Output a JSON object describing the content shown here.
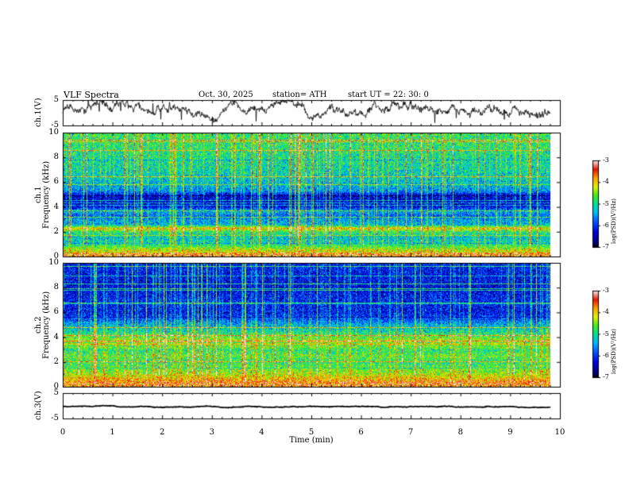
{
  "chart_data": {
    "type": "heatmap",
    "header": {
      "title": "VLF  Spectra",
      "date": "Oct. 30, 2025",
      "station": "station= ATH",
      "start": "start  UT  =   22: 30: 0"
    },
    "x": {
      "label": "Time  (min)",
      "range": [
        0,
        10
      ],
      "ticks": [
        "0",
        "1",
        "2",
        "3",
        "4",
        "5",
        "6",
        "7",
        "8",
        "9",
        "10"
      ]
    },
    "panels": [
      {
        "id": "ch1-waveform",
        "type": "line",
        "ylabel": "ch.1(V)",
        "ylim": [
          -5,
          5
        ],
        "yticks": [
          "5",
          "-5"
        ],
        "offset": 0.6,
        "amplitude": 2.6
      },
      {
        "id": "ch1-spectrogram",
        "type": "heatmap",
        "ylabel": "ch.1\nFrequency  (kHz)",
        "ylim": [
          0,
          10
        ],
        "yticks": [
          "10",
          "8",
          "6",
          "4",
          "2",
          "0"
        ],
        "colorbar": {
          "label": "log(PSD)(V²/Hz)",
          "ticks": [
            "-3",
            "-4",
            "-5",
            "-6",
            "-7"
          ],
          "range": [
            -7,
            -3
          ]
        },
        "profile_khz": [
          [
            0,
            -4.6
          ],
          [
            0.5,
            -4.2
          ],
          [
            1,
            -5.0
          ],
          [
            1.5,
            -5.3
          ],
          [
            2,
            -4.9
          ],
          [
            2.3,
            -4.0
          ],
          [
            2.6,
            -5.4
          ],
          [
            3,
            -5.5
          ],
          [
            3.3,
            -5.8
          ],
          [
            3.7,
            -5.4
          ],
          [
            4,
            -6.2
          ],
          [
            4.5,
            -6.4
          ],
          [
            5,
            -6.3
          ],
          [
            5.3,
            -5.6
          ],
          [
            6,
            -5.3
          ],
          [
            7,
            -5.1
          ],
          [
            8,
            -5.0
          ],
          [
            9,
            -4.9
          ],
          [
            10,
            -4.8
          ]
        ]
      },
      {
        "id": "ch2-spectrogram",
        "type": "heatmap",
        "ylabel": "ch.2\nFrequency  (kHz)",
        "ylim": [
          0,
          10
        ],
        "yticks": [
          "10",
          "8",
          "6",
          "4",
          "2",
          "0"
        ],
        "colorbar": {
          "label": "log(PSD)(V²/Hz)",
          "ticks": [
            "-3",
            "-4",
            "-5",
            "-6",
            "-7"
          ],
          "range": [
            -7,
            -3
          ]
        },
        "profile_khz": [
          [
            0,
            -3.5
          ],
          [
            0.3,
            -3.6
          ],
          [
            0.7,
            -4.0
          ],
          [
            1,
            -4.3
          ],
          [
            1.5,
            -4.6
          ],
          [
            2,
            -4.9
          ],
          [
            2.5,
            -4.6
          ],
          [
            3,
            -4.9
          ],
          [
            3.5,
            -4.2
          ],
          [
            4,
            -4.6
          ],
          [
            4.5,
            -5.1
          ],
          [
            5,
            -5.4
          ],
          [
            5.4,
            -5.8
          ],
          [
            6,
            -6.2
          ],
          [
            7,
            -6.1
          ],
          [
            8,
            -6.3
          ],
          [
            9,
            -6.2
          ],
          [
            10,
            -6.1
          ]
        ]
      },
      {
        "id": "ch3-waveform",
        "type": "line",
        "ylabel": "ch.3(V)",
        "ylim": [
          -5,
          5
        ],
        "yticks": [
          "5",
          "-5"
        ],
        "offset": -0.4,
        "amplitude": 0.25
      }
    ]
  }
}
